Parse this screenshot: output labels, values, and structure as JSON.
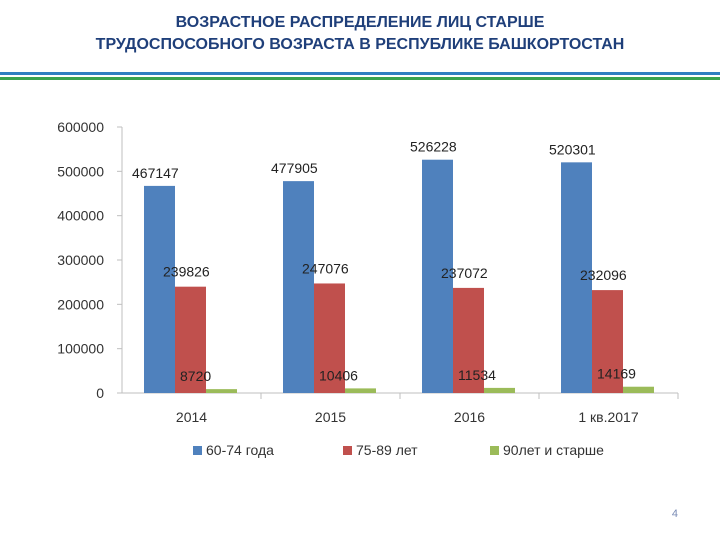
{
  "title_line1": "ВОЗРАСТНОЕ РАСПРЕДЕЛЕНИЕ ЛИЦ СТАРШЕ",
  "title_line2": "ТРУДОСПОСОБНОГО ВОЗРАСТА В РЕСПУБЛИКЕ БАШКОРТОСТАН",
  "page_number": "4",
  "colors": {
    "title": "#1f3f7a",
    "rule_blue": "#2f7fc1",
    "rule_green": "#3aa24f"
  },
  "chart_data": {
    "type": "bar",
    "categories": [
      "2014",
      "2015",
      "2016",
      "1 кв.2017"
    ],
    "series": [
      {
        "name": "60-74 года",
        "color": "#4f81bd",
        "values": [
          467147,
          477905,
          526228,
          520301
        ]
      },
      {
        "name": "75-89 лет",
        "color": "#c0504d",
        "values": [
          239826,
          247076,
          237072,
          232096
        ]
      },
      {
        "name": "90лет и старше",
        "color": "#9bbb59",
        "values": [
          8720,
          10406,
          11534,
          14169
        ]
      }
    ],
    "ylim": [
      0,
      600000
    ],
    "yticks": [
      0,
      100000,
      200000,
      300000,
      400000,
      500000,
      600000
    ],
    "grid": false,
    "legend": "bottom",
    "data_labels": true
  }
}
